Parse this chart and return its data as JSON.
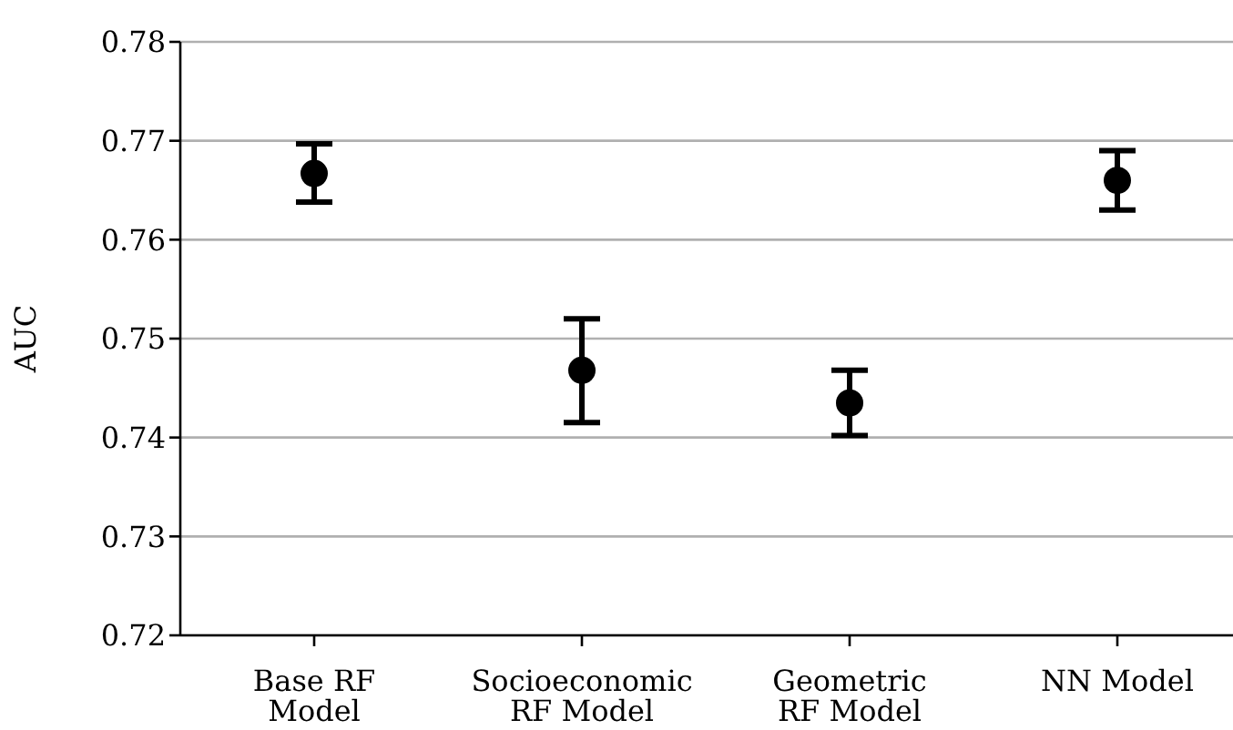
{
  "chart_data": {
    "type": "scatter",
    "ylabel": "AUC",
    "categories": [
      "Base RF\nModel",
      "Socioeconomic\nRF Model",
      "Geometric\nRF Model",
      "NN Model"
    ],
    "values": [
      0.7667,
      0.7468,
      0.7435,
      0.766
    ],
    "errors": [
      [
        0.7638,
        0.7697
      ],
      [
        0.7415,
        0.752
      ],
      [
        0.7402,
        0.7468
      ],
      [
        0.763,
        0.769
      ]
    ],
    "color": "#000000",
    "marker": "circle",
    "ylim": [
      0.72,
      0.78
    ],
    "yticks": [
      0.72,
      0.73,
      0.74,
      0.75,
      0.76,
      0.77,
      0.78
    ],
    "grid": "y"
  }
}
